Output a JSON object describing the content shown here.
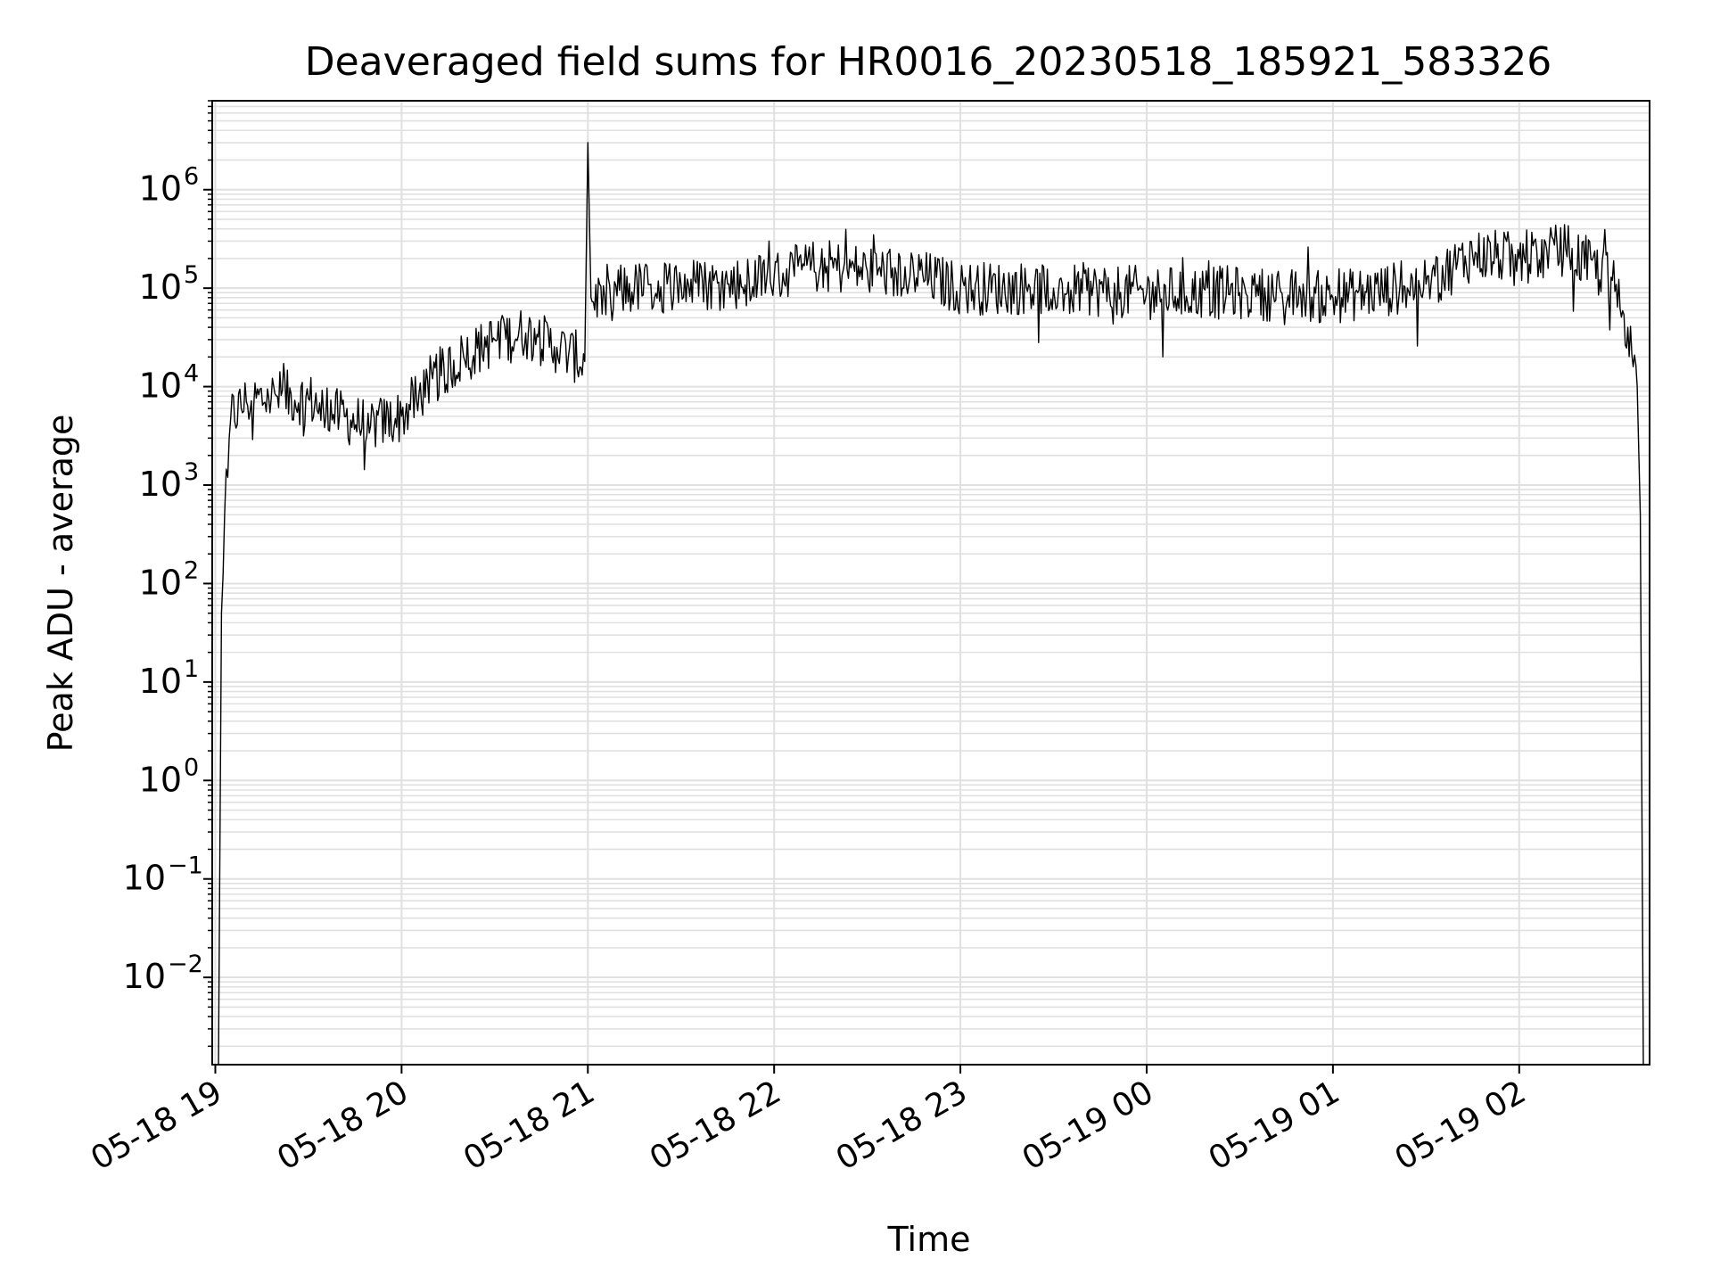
{
  "chart_data": {
    "type": "line",
    "title": "Deaveraged field sums for HR0016_20230518_185921_583326",
    "xlabel": "Time",
    "ylabel": "Peak ADU - average",
    "yscale": "log",
    "ylim": [
      0.0013,
      8000000
    ],
    "xlim": [
      "2023-05-18 18:59",
      "2023-05-19 02:42"
    ],
    "grid": true,
    "line_color": "#000000",
    "grid_color": "#e0e0e0",
    "x_ticks": [
      {
        "label": "05-18 19",
        "value": "2023-05-18 19:00"
      },
      {
        "label": "05-18 20",
        "value": "2023-05-18 20:00"
      },
      {
        "label": "05-18 21",
        "value": "2023-05-18 21:00"
      },
      {
        "label": "05-18 22",
        "value": "2023-05-18 22:00"
      },
      {
        "label": "05-18 23",
        "value": "2023-05-18 23:00"
      },
      {
        "label": "05-19 00",
        "value": "2023-05-19 00:00"
      },
      {
        "label": "05-19 01",
        "value": "2023-05-19 01:00"
      },
      {
        "label": "05-19 02",
        "value": "2023-05-19 02:00"
      }
    ],
    "y_ticks": [
      {
        "base": "10",
        "exp": "−2",
        "value": 0.01
      },
      {
        "base": "10",
        "exp": "−1",
        "value": 0.1
      },
      {
        "base": "10",
        "exp": "0",
        "value": 1
      },
      {
        "base": "10",
        "exp": "1",
        "value": 10
      },
      {
        "base": "10",
        "exp": "2",
        "value": 100
      },
      {
        "base": "10",
        "exp": "3",
        "value": 1000
      },
      {
        "base": "10",
        "exp": "4",
        "value": 10000
      },
      {
        "base": "10",
        "exp": "5",
        "value": 100000
      },
      {
        "base": "10",
        "exp": "6",
        "value": 1000000
      }
    ],
    "series": [
      {
        "points": [
          [
            "2023-05-18 19:01",
            0.0013
          ],
          [
            "2023-05-18 19:02",
            50
          ],
          [
            "2023-05-18 19:03",
            500
          ],
          [
            "2023-05-18 19:04",
            1200
          ],
          [
            "2023-05-18 19:05",
            5000
          ],
          [
            "2023-05-18 19:10",
            7000
          ],
          [
            "2023-05-18 19:20",
            8000
          ],
          [
            "2023-05-18 19:30",
            7500
          ],
          [
            "2023-05-18 19:40",
            5000
          ],
          [
            "2023-05-18 19:50",
            4000
          ],
          [
            "2023-05-18 20:00",
            5000
          ],
          [
            "2023-05-18 20:10",
            12000
          ],
          [
            "2023-05-18 20:20",
            20000
          ],
          [
            "2023-05-18 20:30",
            30000
          ],
          [
            "2023-05-18 20:40",
            35000
          ],
          [
            "2023-05-18 20:50",
            25000
          ],
          [
            "2023-05-18 20:59",
            18000
          ],
          [
            "2023-05-18 21:00",
            3000000
          ],
          [
            "2023-05-18 21:01",
            80000
          ],
          [
            "2023-05-18 21:15",
            100000
          ],
          [
            "2023-05-18 21:30",
            110000
          ],
          [
            "2023-05-18 21:45",
            110000
          ],
          [
            "2023-05-18 22:00",
            130000
          ],
          [
            "2023-05-18 22:15",
            170000
          ],
          [
            "2023-05-18 22:30",
            150000
          ],
          [
            "2023-05-18 22:45",
            140000
          ],
          [
            "2023-05-18 23:00",
            100000
          ],
          [
            "2023-05-18 23:30",
            100000
          ],
          [
            "2023-05-19 00:00",
            90000
          ],
          [
            "2023-05-19 00:30",
            90000
          ],
          [
            "2023-05-19 01:00",
            80000
          ],
          [
            "2023-05-19 01:30",
            110000
          ],
          [
            "2023-05-19 01:45",
            220000
          ],
          [
            "2023-05-19 02:00",
            200000
          ],
          [
            "2023-05-19 02:15",
            250000
          ],
          [
            "2023-05-19 02:30",
            120000
          ],
          [
            "2023-05-19 02:35",
            40000
          ],
          [
            "2023-05-19 02:38",
            10000
          ],
          [
            "2023-05-19 02:39",
            500
          ],
          [
            "2023-05-19 02:40",
            0.0013
          ]
        ]
      }
    ]
  }
}
